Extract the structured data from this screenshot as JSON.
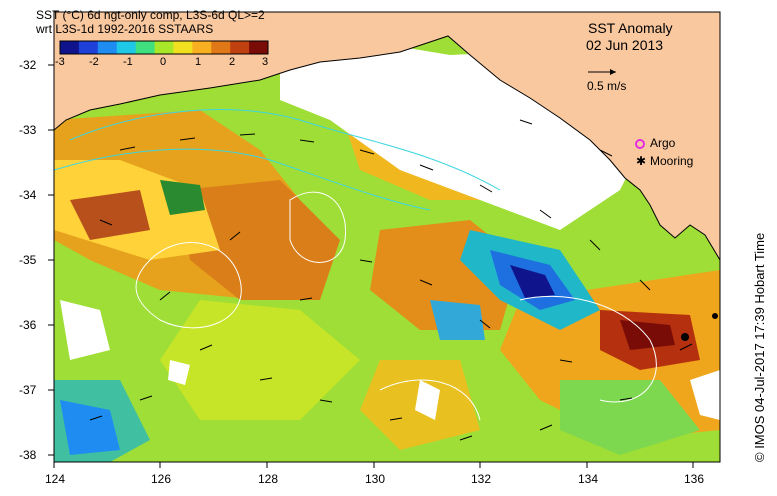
{
  "header": {
    "line1": "SST (°C) 6d ngt-only comp, L3S-6d QL>=2",
    "line2": "wrt L3S-1d 1992-2016 SSTAARS"
  },
  "colorbar": {
    "ticks": [
      "-3",
      "-2",
      "-1",
      "0",
      "1",
      "2",
      "3"
    ],
    "colors": [
      "#10148c",
      "#1e40d8",
      "#1e8cf0",
      "#20c8e8",
      "#40e080",
      "#a8e828",
      "#f0e020",
      "#f8b020",
      "#e07818",
      "#c04010",
      "#7a0c08"
    ]
  },
  "map_title": {
    "name": "SST Anomaly",
    "date": "02 Jun 2013"
  },
  "velocity_scale": {
    "label": "0.5 m/s"
  },
  "legend": {
    "argo": "Argo",
    "mooring": "Mooring"
  },
  "axes": {
    "x_ticks": [
      "124",
      "126",
      "128",
      "130",
      "132",
      "134",
      "136"
    ],
    "y_ticks": [
      "-32",
      "-33",
      "-34",
      "-35",
      "-36",
      "-37",
      "-38"
    ]
  },
  "credit": "© IMOS 04-Jul-2017 17:39 Hobart Time",
  "colors": {
    "land": "#f9c89f",
    "coast": "#000000",
    "contour": "#ffffff",
    "fronts": "#3fd6e0"
  }
}
